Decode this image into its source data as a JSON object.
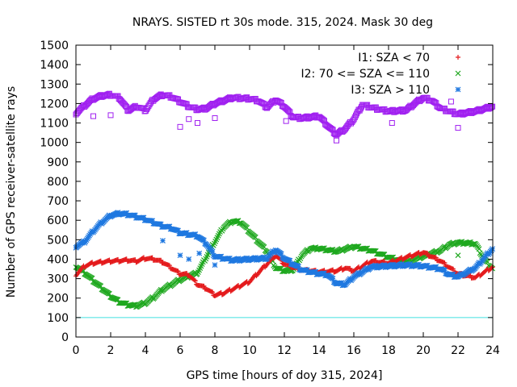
{
  "chart_data": {
    "type": "scatter",
    "title": "NRAYS. SISTED rt 30s mode. 315, 2024. Mask 30 deg",
    "xlabel": "GPS time [hours of doy 315, 2024]",
    "ylabel": "Number of GPS receiver-satellite rays",
    "xlim": [
      0,
      24
    ],
    "ylim": [
      0,
      1500
    ],
    "xticks": [
      "0",
      "2",
      "4",
      "6",
      "8",
      "10",
      "12",
      "14",
      "16",
      "18",
      "20",
      "22",
      "24"
    ],
    "yticks": [
      "0",
      "100",
      "200",
      "300",
      "400",
      "500",
      "600",
      "700",
      "800",
      "900",
      "1000",
      "1100",
      "1200",
      "1300",
      "1400",
      "1500"
    ],
    "grid": false,
    "legend_position": "top-right",
    "reference_line": {
      "y": 100,
      "color": "#40e0e0"
    },
    "series": [
      {
        "name": "I1: SZA < 70",
        "marker": "+",
        "color": "#e41a1c",
        "x": [
          0,
          0.5,
          1,
          2,
          3,
          3.5,
          4,
          4.5,
          5,
          6,
          6.5,
          7,
          7.5,
          8,
          8.5,
          9,
          10,
          11,
          11.5,
          12,
          13,
          14,
          15,
          15.5,
          16,
          17,
          18,
          19,
          20,
          21,
          22,
          23,
          24
        ],
        "y": [
          320,
          365,
          380,
          390,
          395,
          390,
          405,
          400,
          385,
          325,
          320,
          270,
          250,
          215,
          225,
          245,
          285,
          375,
          420,
          375,
          345,
          335,
          340,
          355,
          340,
          390,
          380,
          410,
          435,
          390,
          325,
          305,
          360
        ]
      },
      {
        "name": "I2: 70 <= SZA <= 110",
        "marker": "x",
        "color": "#1fa81f",
        "x": [
          0,
          0.5,
          1,
          1.5,
          2,
          2.5,
          3,
          3.5,
          4,
          4.5,
          5,
          6,
          7,
          7.5,
          8,
          8.5,
          9,
          9.5,
          10,
          11,
          11.5,
          12,
          12.5,
          13,
          13.5,
          14,
          15,
          16,
          17,
          18,
          19,
          19.5,
          20,
          21,
          21.5,
          22,
          23,
          23.5,
          24
        ],
        "y": [
          365,
          330,
          290,
          250,
          210,
          180,
          165,
          160,
          175,
          205,
          245,
          295,
          330,
          410,
          490,
          565,
          595,
          590,
          540,
          440,
          355,
          340,
          345,
          420,
          455,
          455,
          440,
          465,
          445,
          410,
          385,
          400,
          415,
          445,
          475,
          485,
          480,
          400,
          350
        ]
      },
      {
        "name": "I3: SZA > 110",
        "marker": "*",
        "color": "#1f78e0",
        "x": [
          0,
          0.5,
          1,
          1.5,
          2,
          2.5,
          3,
          4,
          5,
          5.5,
          6,
          7,
          7.5,
          8,
          9,
          10,
          11,
          11.5,
          12,
          13,
          14,
          14.5,
          15,
          15.5,
          16,
          17,
          18,
          19,
          20,
          21,
          21.5,
          22,
          23,
          24
        ],
        "y": [
          465,
          490,
          545,
          590,
          625,
          635,
          630,
          605,
          570,
          560,
          535,
          520,
          480,
          415,
          395,
          400,
          405,
          450,
          405,
          345,
          325,
          320,
          275,
          270,
          310,
          360,
          365,
          370,
          365,
          350,
          320,
          310,
          355,
          455
        ]
      },
      {
        "name": "",
        "marker": "square",
        "color": "#a020f0",
        "x": [
          0,
          0.5,
          1,
          1.5,
          2,
          2.5,
          3,
          3.5,
          4,
          4.5,
          5,
          5.5,
          6,
          6.5,
          7,
          7.5,
          8,
          9,
          10,
          10.5,
          11,
          11.5,
          12,
          12.5,
          13,
          14,
          14.5,
          15,
          15.5,
          16,
          16.5,
          17,
          18,
          19,
          19.5,
          20,
          20.5,
          21,
          22,
          23,
          24
        ],
        "y": [
          1150,
          1190,
          1225,
          1240,
          1245,
          1230,
          1165,
          1185,
          1165,
          1225,
          1245,
          1235,
          1210,
          1185,
          1170,
          1175,
          1200,
          1230,
          1225,
          1215,
          1180,
          1220,
          1185,
          1130,
          1125,
          1135,
          1085,
          1040,
          1070,
          1120,
          1195,
          1180,
          1160,
          1165,
          1200,
          1230,
          1215,
          1175,
          1145,
          1160,
          1185
        ]
      }
    ],
    "outliers": [
      {
        "series": 2,
        "x": [
          5,
          6,
          6.5,
          7.1,
          8
        ],
        "y": [
          495,
          420,
          400,
          430,
          370
        ]
      },
      {
        "series": 3,
        "x": [
          1,
          2,
          6,
          6.5,
          7,
          8,
          12.1,
          15,
          18.2,
          21.6,
          22
        ],
        "y": [
          1135,
          1140,
          1080,
          1120,
          1100,
          1125,
          1110,
          1010,
          1100,
          1210,
          1075
        ]
      },
      {
        "series": 1,
        "x": [
          22
        ],
        "y": [
          420
        ]
      }
    ]
  }
}
